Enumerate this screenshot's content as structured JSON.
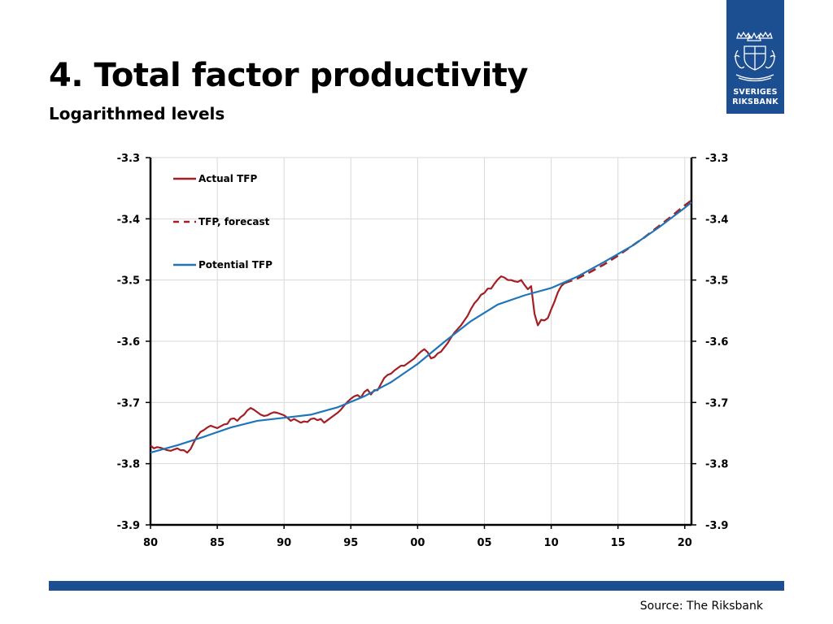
{
  "header": {
    "title": "4. Total factor productivity",
    "subtitle": "Logarithmed levels"
  },
  "logo": {
    "line1": "SVERIGES",
    "line2": "RIKSBANK",
    "color": "#1c4f91"
  },
  "footer": {
    "source": "Source: The Riksbank",
    "bar_color": "#1c4f91"
  },
  "chart_data": {
    "type": "line",
    "title": "4. Total factor productivity",
    "subtitle": "Logarithmed levels",
    "xlabel": "",
    "ylabel": "",
    "xlim": [
      1980,
      2020.5
    ],
    "ylim": [
      -3.9,
      -3.3
    ],
    "x_ticks": [
      1980,
      1985,
      1990,
      1995,
      2000,
      2005,
      2010,
      2015,
      2020
    ],
    "x_tick_labels": [
      "80",
      "85",
      "90",
      "95",
      "00",
      "05",
      "10",
      "15",
      "20"
    ],
    "y_ticks": [
      -3.3,
      -3.4,
      -3.5,
      -3.6,
      -3.7,
      -3.8,
      -3.9
    ],
    "y_tick_labels": [
      "-3.3",
      "-3.4",
      "-3.5",
      "-3.6",
      "-3.7",
      "-3.8",
      "-3.9"
    ],
    "y_ticks_right": true,
    "grid": true,
    "legend_position": "top-left",
    "series": [
      {
        "name": "Actual TFP",
        "color": "#a31f24",
        "style": "solid",
        "x": [
          1980.0,
          1980.25,
          1980.5,
          1980.75,
          1981.0,
          1981.25,
          1981.5,
          1981.75,
          1982.0,
          1982.25,
          1982.5,
          1982.75,
          1983.0,
          1983.25,
          1983.5,
          1983.75,
          1984.0,
          1984.25,
          1984.5,
          1984.75,
          1985.0,
          1985.25,
          1985.5,
          1985.75,
          1986.0,
          1986.25,
          1986.5,
          1986.75,
          1987.0,
          1987.25,
          1987.5,
          1987.75,
          1988.0,
          1988.25,
          1988.5,
          1988.75,
          1989.0,
          1989.25,
          1989.5,
          1989.75,
          1990.0,
          1990.25,
          1990.5,
          1990.75,
          1991.0,
          1991.25,
          1991.5,
          1991.75,
          1992.0,
          1992.25,
          1992.5,
          1992.75,
          1993.0,
          1993.25,
          1993.5,
          1993.75,
          1994.0,
          1994.25,
          1994.5,
          1994.75,
          1995.0,
          1995.25,
          1995.5,
          1995.75,
          1996.0,
          1996.25,
          1996.5,
          1996.75,
          1997.0,
          1997.25,
          1997.5,
          1997.75,
          1998.0,
          1998.25,
          1998.5,
          1998.75,
          1999.0,
          1999.25,
          1999.5,
          1999.75,
          2000.0,
          2000.25,
          2000.5,
          2000.75,
          2001.0,
          2001.25,
          2001.5,
          2001.75,
          2002.0,
          2002.25,
          2002.5,
          2002.75,
          2003.0,
          2003.25,
          2003.5,
          2003.75,
          2004.0,
          2004.25,
          2004.5,
          2004.75,
          2005.0,
          2005.25,
          2005.5,
          2005.75,
          2006.0,
          2006.25,
          2006.5,
          2006.75,
          2007.0,
          2007.25,
          2007.5,
          2007.75,
          2008.0,
          2008.25,
          2008.5,
          2008.75,
          2009.0,
          2009.25,
          2009.5,
          2009.75,
          2010.0,
          2010.25,
          2010.5,
          2010.75,
          2011.0
        ],
        "values": [
          -3.77,
          -3.775,
          -3.773,
          -3.774,
          -3.776,
          -3.778,
          -3.779,
          -3.777,
          -3.775,
          -3.778,
          -3.778,
          -3.782,
          -3.776,
          -3.765,
          -3.755,
          -3.748,
          -3.745,
          -3.741,
          -3.738,
          -3.74,
          -3.742,
          -3.739,
          -3.736,
          -3.735,
          -3.727,
          -3.726,
          -3.73,
          -3.724,
          -3.72,
          -3.713,
          -3.709,
          -3.712,
          -3.716,
          -3.72,
          -3.722,
          -3.721,
          -3.718,
          -3.716,
          -3.717,
          -3.719,
          -3.721,
          -3.725,
          -3.73,
          -3.727,
          -3.73,
          -3.733,
          -3.731,
          -3.732,
          -3.727,
          -3.726,
          -3.729,
          -3.727,
          -3.733,
          -3.729,
          -3.725,
          -3.721,
          -3.717,
          -3.712,
          -3.705,
          -3.699,
          -3.694,
          -3.69,
          -3.688,
          -3.692,
          -3.683,
          -3.679,
          -3.687,
          -3.68,
          -3.68,
          -3.67,
          -3.66,
          -3.655,
          -3.653,
          -3.648,
          -3.644,
          -3.64,
          -3.64,
          -3.636,
          -3.632,
          -3.628,
          -3.622,
          -3.617,
          -3.613,
          -3.618,
          -3.628,
          -3.626,
          -3.62,
          -3.617,
          -3.61,
          -3.603,
          -3.594,
          -3.586,
          -3.58,
          -3.574,
          -3.566,
          -3.558,
          -3.547,
          -3.538,
          -3.532,
          -3.524,
          -3.521,
          -3.514,
          -3.514,
          -3.506,
          -3.499,
          -3.494,
          -3.496,
          -3.5,
          -3.5,
          -3.502,
          -3.503,
          -3.5,
          -3.508,
          -3.515,
          -3.51,
          -3.555,
          -3.574,
          -3.565,
          -3.566,
          -3.562,
          -3.548,
          -3.535,
          -3.52,
          -3.51,
          -3.505
        ]
      },
      {
        "name": "TFP, forecast",
        "color": "#a31f24",
        "style": "dashed",
        "x": [
          2011.0,
          2012.0,
          2013.0,
          2014.0,
          2015.0,
          2016.0,
          2017.0,
          2018.0,
          2019.0,
          2020.0,
          2020.5
        ],
        "values": [
          -3.505,
          -3.497,
          -3.486,
          -3.474,
          -3.46,
          -3.445,
          -3.43,
          -3.413,
          -3.396,
          -3.378,
          -3.37
        ]
      },
      {
        "name": "Potential TFP",
        "color": "#1f75b8",
        "style": "solid",
        "x": [
          1980.0,
          1982.0,
          1984.0,
          1986.0,
          1988.0,
          1990.0,
          1992.0,
          1994.0,
          1996.0,
          1998.0,
          2000.0,
          2002.0,
          2004.0,
          2006.0,
          2008.0,
          2010.0,
          2012.0,
          2014.0,
          2016.0,
          2018.0,
          2020.0,
          2020.5
        ],
        "values": [
          -3.782,
          -3.77,
          -3.756,
          -3.741,
          -3.73,
          -3.725,
          -3.72,
          -3.708,
          -3.69,
          -3.667,
          -3.637,
          -3.601,
          -3.567,
          -3.54,
          -3.525,
          -3.513,
          -3.494,
          -3.47,
          -3.445,
          -3.415,
          -3.382,
          -3.373
        ]
      }
    ]
  }
}
